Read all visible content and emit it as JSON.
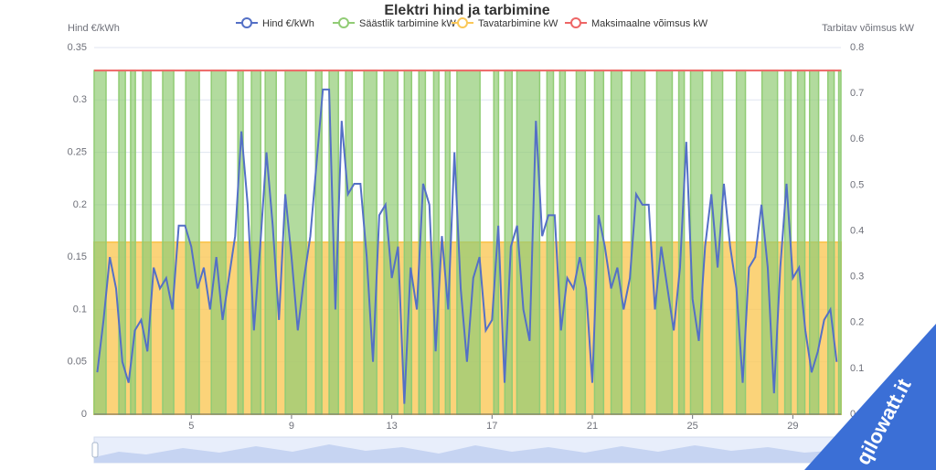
{
  "chart_data": {
    "type": "line",
    "title": "Elektri hind ja tarbimine",
    "y_label": "Hind €/kWh",
    "y2_label": "Tarbitav võimsus kW",
    "watermark": "qilowatt.it",
    "xlim": [
      1.125,
      30.92
    ],
    "xticks": [
      5,
      9,
      13,
      17,
      21,
      25,
      29
    ],
    "ylim": [
      0,
      0.35
    ],
    "yticks": [
      0,
      0.05,
      0.1,
      0.15,
      0.2,
      0.25,
      0.3,
      0.35
    ],
    "y2lim": [
      0,
      0.8
    ],
    "y2ticks": [
      0,
      0.1,
      0.2,
      0.3,
      0.4,
      0.5,
      0.6,
      0.7,
      0.8
    ],
    "grid": true,
    "series": [
      {
        "name": "Hind €/kWh",
        "color": "#5470c6",
        "type": "line",
        "x": [
          1.25,
          1.5,
          1.75,
          2,
          2.25,
          2.5,
          2.75,
          3,
          3.25,
          3.5,
          3.75,
          4,
          4.25,
          4.5,
          4.75,
          5,
          5.25,
          5.5,
          5.75,
          6,
          6.25,
          6.5,
          6.75,
          7,
          7.25,
          7.5,
          7.75,
          8,
          8.25,
          8.5,
          8.75,
          9,
          9.25,
          9.5,
          9.75,
          10,
          10.25,
          10.5,
          10.75,
          11,
          11.25,
          11.5,
          11.75,
          12,
          12.25,
          12.5,
          12.75,
          13,
          13.25,
          13.5,
          13.75,
          14,
          14.25,
          14.5,
          14.75,
          15,
          15.25,
          15.5,
          15.75,
          16,
          16.25,
          16.5,
          16.75,
          17,
          17.25,
          17.5,
          17.75,
          18,
          18.25,
          18.5,
          18.75,
          19,
          19.25,
          19.5,
          19.75,
          20,
          20.25,
          20.5,
          20.75,
          21,
          21.25,
          21.5,
          21.75,
          22,
          22.25,
          22.5,
          22.75,
          23,
          23.25,
          23.5,
          23.75,
          24,
          24.25,
          24.5,
          24.75,
          25,
          25.25,
          25.5,
          25.75,
          26,
          26.25,
          26.5,
          26.75,
          27,
          27.25,
          27.5,
          27.75,
          28,
          28.25,
          28.5,
          28.75,
          29,
          29.25,
          29.5,
          29.75,
          30,
          30.25,
          30.5,
          30.75
        ],
        "values": [
          0.04,
          0.09,
          0.15,
          0.12,
          0.05,
          0.03,
          0.08,
          0.09,
          0.06,
          0.14,
          0.12,
          0.13,
          0.1,
          0.18,
          0.18,
          0.16,
          0.12,
          0.14,
          0.1,
          0.15,
          0.09,
          0.13,
          0.17,
          0.27,
          0.2,
          0.08,
          0.16,
          0.25,
          0.18,
          0.09,
          0.21,
          0.15,
          0.08,
          0.13,
          0.17,
          0.24,
          0.31,
          0.31,
          0.1,
          0.28,
          0.21,
          0.22,
          0.22,
          0.15,
          0.05,
          0.19,
          0.2,
          0.13,
          0.16,
          0.01,
          0.14,
          0.1,
          0.22,
          0.2,
          0.06,
          0.17,
          0.1,
          0.25,
          0.12,
          0.05,
          0.13,
          0.15,
          0.08,
          0.09,
          0.18,
          0.03,
          0.16,
          0.18,
          0.1,
          0.07,
          0.28,
          0.17,
          0.19,
          0.19,
          0.08,
          0.13,
          0.12,
          0.15,
          0.12,
          0.03,
          0.19,
          0.16,
          0.12,
          0.14,
          0.1,
          0.13,
          0.21,
          0.2,
          0.2,
          0.1,
          0.16,
          0.12,
          0.08,
          0.14,
          0.26,
          0.11,
          0.07,
          0.16,
          0.21,
          0.14,
          0.22,
          0.16,
          0.12,
          0.03,
          0.14,
          0.15,
          0.2,
          0.14,
          0.02,
          0.14,
          0.22,
          0.13,
          0.14,
          0.08,
          0.04,
          0.06,
          0.09,
          0.1,
          0.05
        ]
      },
      {
        "name": "Säästlik tarbimine kW",
        "color": "#91cc75",
        "type": "step",
        "axis": "y2",
        "x": [
          1.125,
          1.6,
          2.11,
          2.37,
          2.58,
          2.77,
          3.06,
          3.39,
          3.86,
          4.3,
          4.78,
          5.32,
          5.8,
          6.38,
          6.86,
          7.07,
          7.4,
          7.77,
          7.95,
          8.39,
          8.75,
          9.59,
          9.96,
          10.21,
          10.5,
          10.87,
          11.16,
          11.42,
          11.89,
          12.4,
          12.69,
          13.24,
          13.5,
          13.79,
          14.08,
          14.34,
          14.67,
          14.88,
          15.14,
          15.32,
          15.6,
          16.52,
          17.07,
          17.26,
          17.51,
          17.8,
          17.99,
          18.9,
          19.19,
          19.45,
          19.7,
          19.92,
          20.36,
          20.72,
          21.09,
          21.45,
          21.75,
          22.18,
          22.55,
          23.1,
          23.57,
          24.19,
          24.45,
          24.67,
          24.92,
          25.4,
          25.76,
          26.2,
          26.75,
          27.11,
          27.77,
          28.39,
          28.68,
          28.93,
          29.19,
          29.48,
          29.67,
          30.03,
          30.4,
          30.65,
          30.83
        ],
        "values": [
          0.75,
          0,
          0.75,
          0,
          0.75,
          0,
          0.75,
          0,
          0.75,
          0,
          0.75,
          0,
          0.75,
          0,
          0.75,
          0,
          0.75,
          0,
          0.75,
          0,
          0.75,
          0,
          0.75,
          0,
          0.75,
          0,
          0.75,
          0,
          0.75,
          0,
          0.75,
          0,
          0.75,
          0,
          0.75,
          0,
          0.75,
          0,
          0.75,
          0,
          0.75,
          0,
          0.75,
          0,
          0.75,
          0,
          0.75,
          0,
          0.75,
          0,
          0.75,
          0,
          0.75,
          0,
          0.75,
          0,
          0.75,
          0,
          0.75,
          0,
          0.75,
          0,
          0.75,
          0,
          0.75,
          0,
          0.75,
          0,
          0.75,
          0,
          0.75,
          0,
          0.75,
          0,
          0.75,
          0,
          0.75,
          0,
          0.75,
          0,
          0.75
        ]
      },
      {
        "name": "Tavatarbimine kW",
        "color": "#fac858",
        "type": "area",
        "axis": "y2",
        "x": [
          1.125,
          30.92
        ],
        "values": [
          0.375,
          0.375
        ]
      },
      {
        "name": "Maksimaalne võimsus kW",
        "color": "#ee6666",
        "type": "line",
        "axis": "y2",
        "x": [
          1.125,
          30.92
        ],
        "values": [
          0.75,
          0.75
        ]
      }
    ]
  }
}
